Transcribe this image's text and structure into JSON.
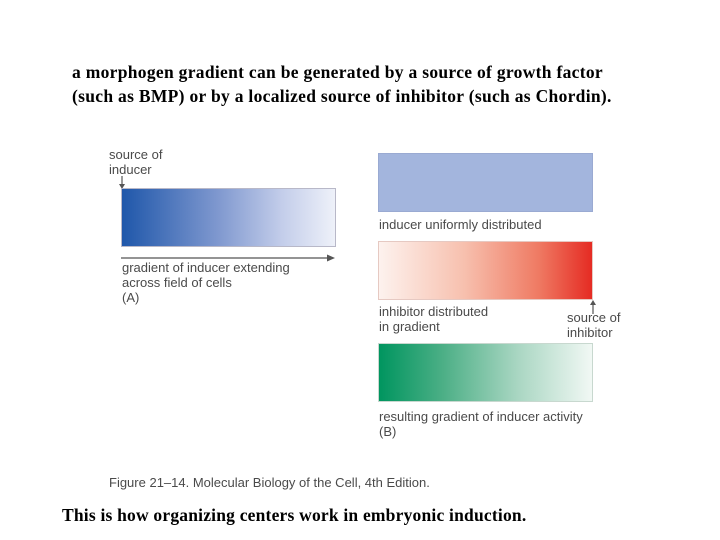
{
  "heading": {
    "line1": "a morphogen  gradient can be generated by a source of growth factor",
    "line2": "(such as BMP) or by a localized source of inhibitor (such as Chordin)."
  },
  "panel_a": {
    "source_label_1": "source of",
    "source_label_2": "inducer",
    "gradient_label_1": "gradient of inducer extending",
    "gradient_label_2": "across field of cells",
    "panel_letter": "(A)"
  },
  "panel_b": {
    "uniform_label": "inducer uniformly distributed",
    "inhibitor_label_1": "inhibitor distributed",
    "inhibitor_label_2": "in gradient",
    "inhibitor_source_1": "source of",
    "inhibitor_source_2": "inhibitor",
    "result_label": "resulting gradient of inducer activity",
    "panel_letter": "(B)"
  },
  "caption": "Figure 21–14. Molecular Biology of the Cell, 4th Edition.",
  "footer": "This is how organizing centers work in embryonic induction.",
  "colors": {
    "inducer_blue": "#1f57aa",
    "uniform_blue": "#a3b5dd",
    "inhibitor_red": "#e52b23",
    "activity_green": "#00955f"
  }
}
